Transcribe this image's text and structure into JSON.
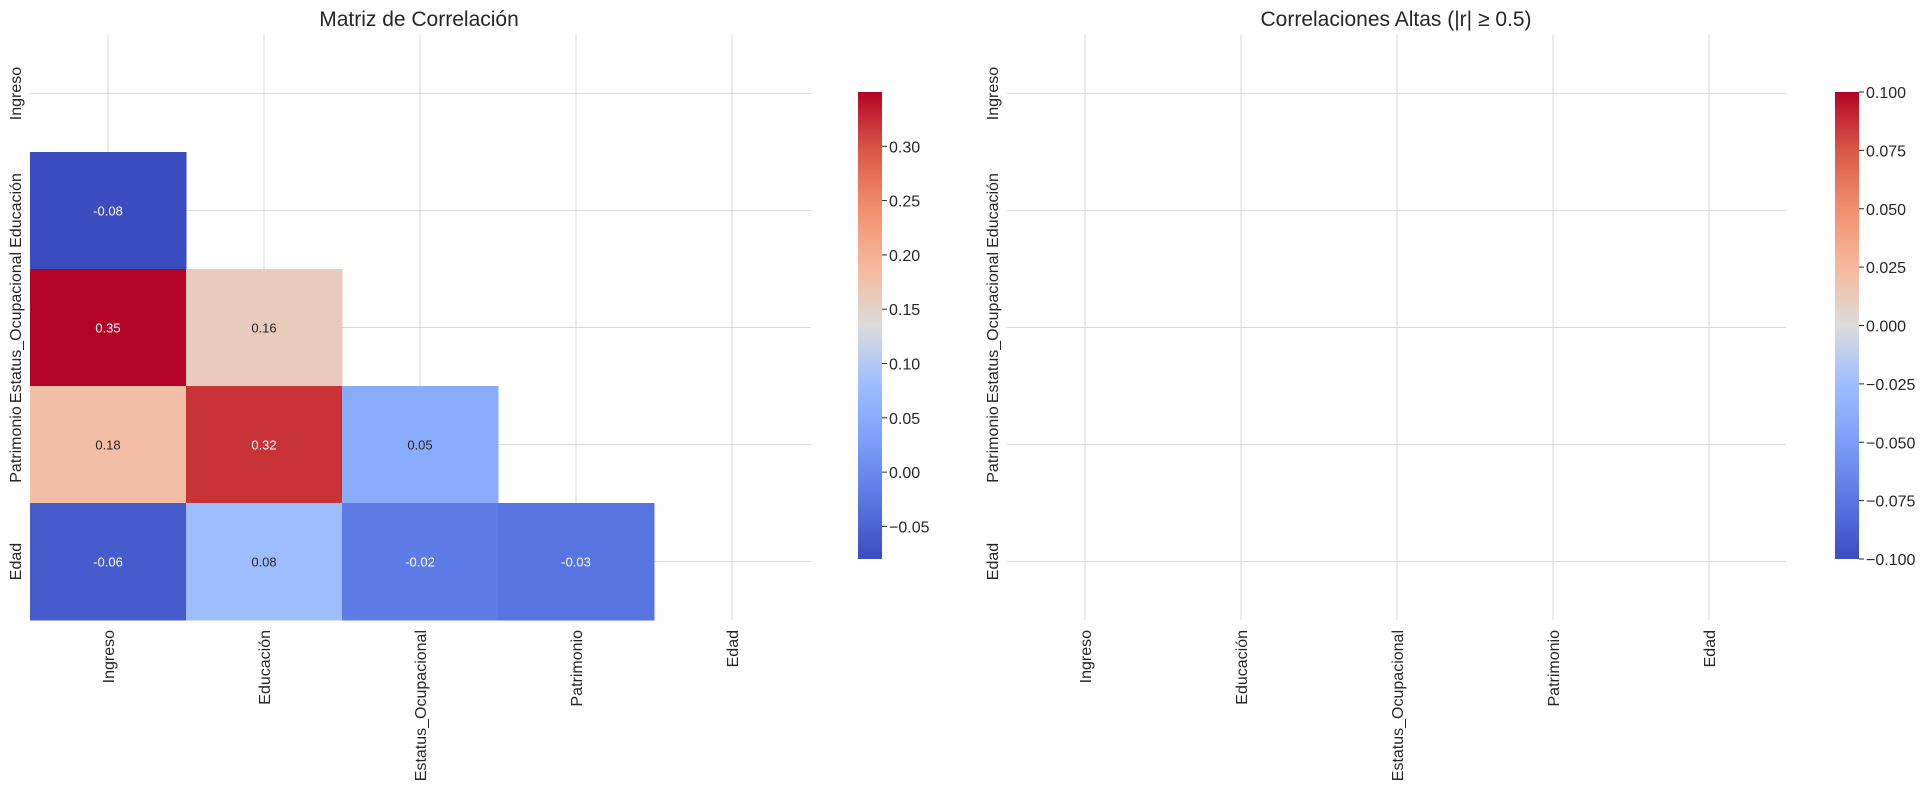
{
  "chart_data": [
    {
      "type": "heatmap",
      "title": "Matriz de Correlación",
      "variables": [
        "Ingreso",
        "Educación",
        "Estatus_Ocupacional",
        "Patrimonio",
        "Edad"
      ],
      "mask": "upper-triangle-including-diagonal",
      "cells": [
        {
          "row": "Educación",
          "col": "Ingreso",
          "value": -0.08,
          "label": "-0.08"
        },
        {
          "row": "Estatus_Ocupacional",
          "col": "Ingreso",
          "value": 0.35,
          "label": "0.35"
        },
        {
          "row": "Estatus_Ocupacional",
          "col": "Educación",
          "value": 0.16,
          "label": "0.16"
        },
        {
          "row": "Patrimonio",
          "col": "Ingreso",
          "value": 0.18,
          "label": "0.18"
        },
        {
          "row": "Patrimonio",
          "col": "Educación",
          "value": 0.32,
          "label": "0.32"
        },
        {
          "row": "Patrimonio",
          "col": "Estatus_Ocupacional",
          "value": 0.05,
          "label": "0.05"
        },
        {
          "row": "Edad",
          "col": "Ingreso",
          "value": -0.06,
          "label": "-0.06"
        },
        {
          "row": "Edad",
          "col": "Educación",
          "value": 0.08,
          "label": "0.08"
        },
        {
          "row": "Edad",
          "col": "Estatus_Ocupacional",
          "value": -0.02,
          "label": "-0.02"
        },
        {
          "row": "Edad",
          "col": "Patrimonio",
          "value": -0.03,
          "label": "-0.03"
        }
      ],
      "colormap": "coolwarm",
      "colorbar": {
        "range": [
          -0.08,
          0.35
        ],
        "ticks": [
          -0.05,
          0.0,
          0.05,
          0.1,
          0.15,
          0.2,
          0.25,
          0.3
        ],
        "tick_labels": [
          "−0.05",
          "0.00",
          "0.05",
          "0.10",
          "0.15",
          "0.20",
          "0.25",
          "0.30"
        ]
      },
      "grid": true
    },
    {
      "type": "heatmap",
      "title": "Correlaciones Altas (|r| ≥ 0.5)",
      "variables": [
        "Ingreso",
        "Educación",
        "Estatus_Ocupacional",
        "Patrimonio",
        "Edad"
      ],
      "cells": [],
      "colormap": "coolwarm",
      "colorbar": {
        "range": [
          -0.1,
          0.1
        ],
        "ticks": [
          -0.1,
          -0.075,
          -0.05,
          -0.025,
          0.0,
          0.025,
          0.05,
          0.075,
          0.1
        ],
        "tick_labels": [
          "−0.100",
          "−0.075",
          "−0.050",
          "−0.025",
          "0.000",
          "0.025",
          "0.050",
          "0.075",
          "0.100"
        ]
      },
      "grid": true
    }
  ]
}
